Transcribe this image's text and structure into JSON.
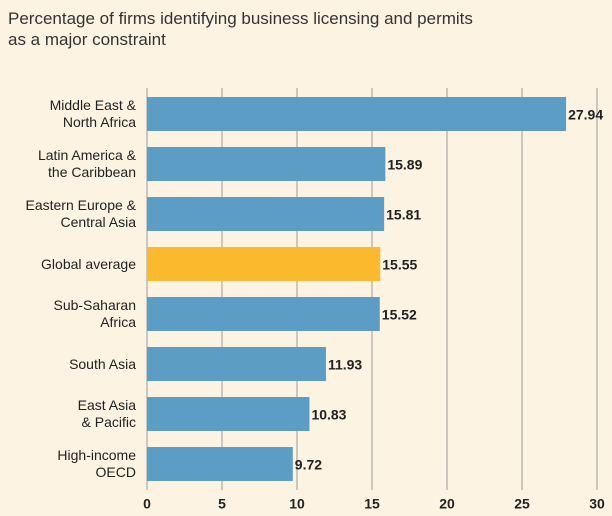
{
  "chart_data": {
    "type": "bar",
    "orientation": "horizontal",
    "title": "Percentage of firms identifying business licensing and permits\nas a major constraint",
    "categories": [
      "Middle East &\nNorth Africa",
      "Latin America &\nthe Caribbean",
      "Eastern Europe &\nCentral Asia",
      "Global average",
      "Sub-Saharan\nAfrica",
      "South Asia",
      "East Asia\n& Pacific",
      "High-income\nOECD"
    ],
    "values": [
      27.94,
      15.89,
      15.81,
      15.55,
      15.52,
      11.93,
      10.83,
      9.72
    ],
    "colors": [
      "#5b9dc5",
      "#5b9dc5",
      "#5b9dc5",
      "#fbb92e",
      "#5b9dc5",
      "#5b9dc5",
      "#5b9dc5",
      "#5b9dc5"
    ],
    "xlim": [
      0,
      30
    ],
    "xticks": [
      0,
      5,
      10,
      15,
      20,
      25,
      30
    ],
    "grid": true
  }
}
